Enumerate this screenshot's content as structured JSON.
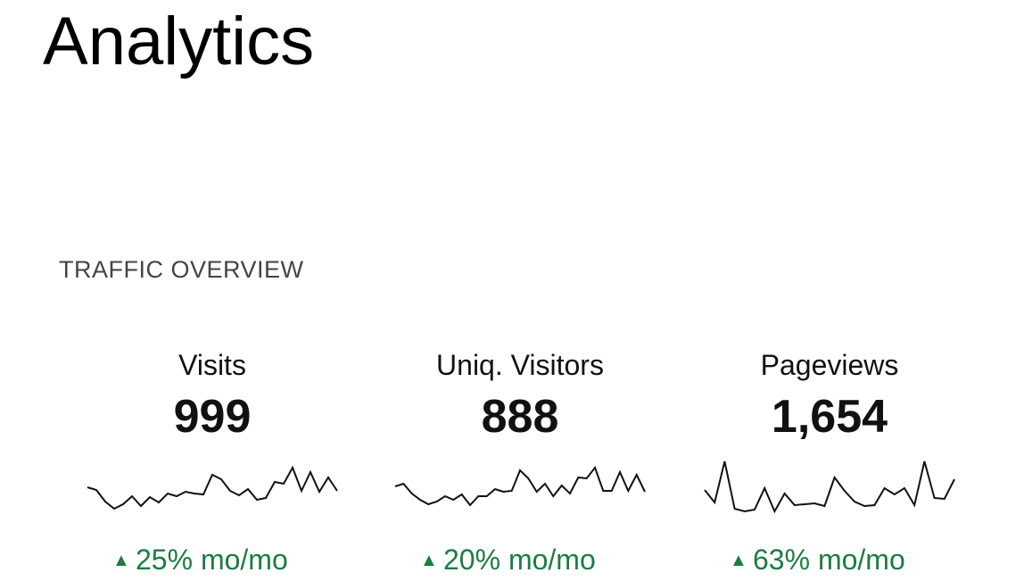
{
  "header": {
    "title": "Analytics"
  },
  "section": {
    "title": "TRAFFIC OVERVIEW"
  },
  "metrics": [
    {
      "label": "Visits",
      "value": "999",
      "change": "25% mo/mo",
      "trend": [
        29,
        26,
        13,
        5,
        10,
        19,
        8,
        18,
        12,
        22,
        19,
        24,
        22,
        21,
        43,
        38,
        25,
        20,
        27,
        15,
        17,
        35,
        33,
        51,
        25,
        46,
        24,
        40,
        25
      ]
    },
    {
      "label": "Uniq. Visitors",
      "value": "888",
      "change": "20% mo/mo",
      "trend": [
        30,
        33,
        22,
        15,
        10,
        13,
        19,
        15,
        21,
        9,
        19,
        19,
        27,
        24,
        25,
        48,
        39,
        24,
        33,
        19,
        31,
        22,
        40,
        39,
        51,
        25,
        25,
        46,
        25,
        43,
        24
      ]
    },
    {
      "label": "Pageviews",
      "value": "1,654",
      "change": "63% mo/mo",
      "trend": [
        26,
        12,
        58,
        5,
        2,
        4,
        28,
        2,
        22,
        9,
        10,
        11,
        8,
        40,
        25,
        13,
        8,
        9,
        28,
        21,
        28,
        9,
        58,
        17,
        16,
        38
      ]
    }
  ]
}
